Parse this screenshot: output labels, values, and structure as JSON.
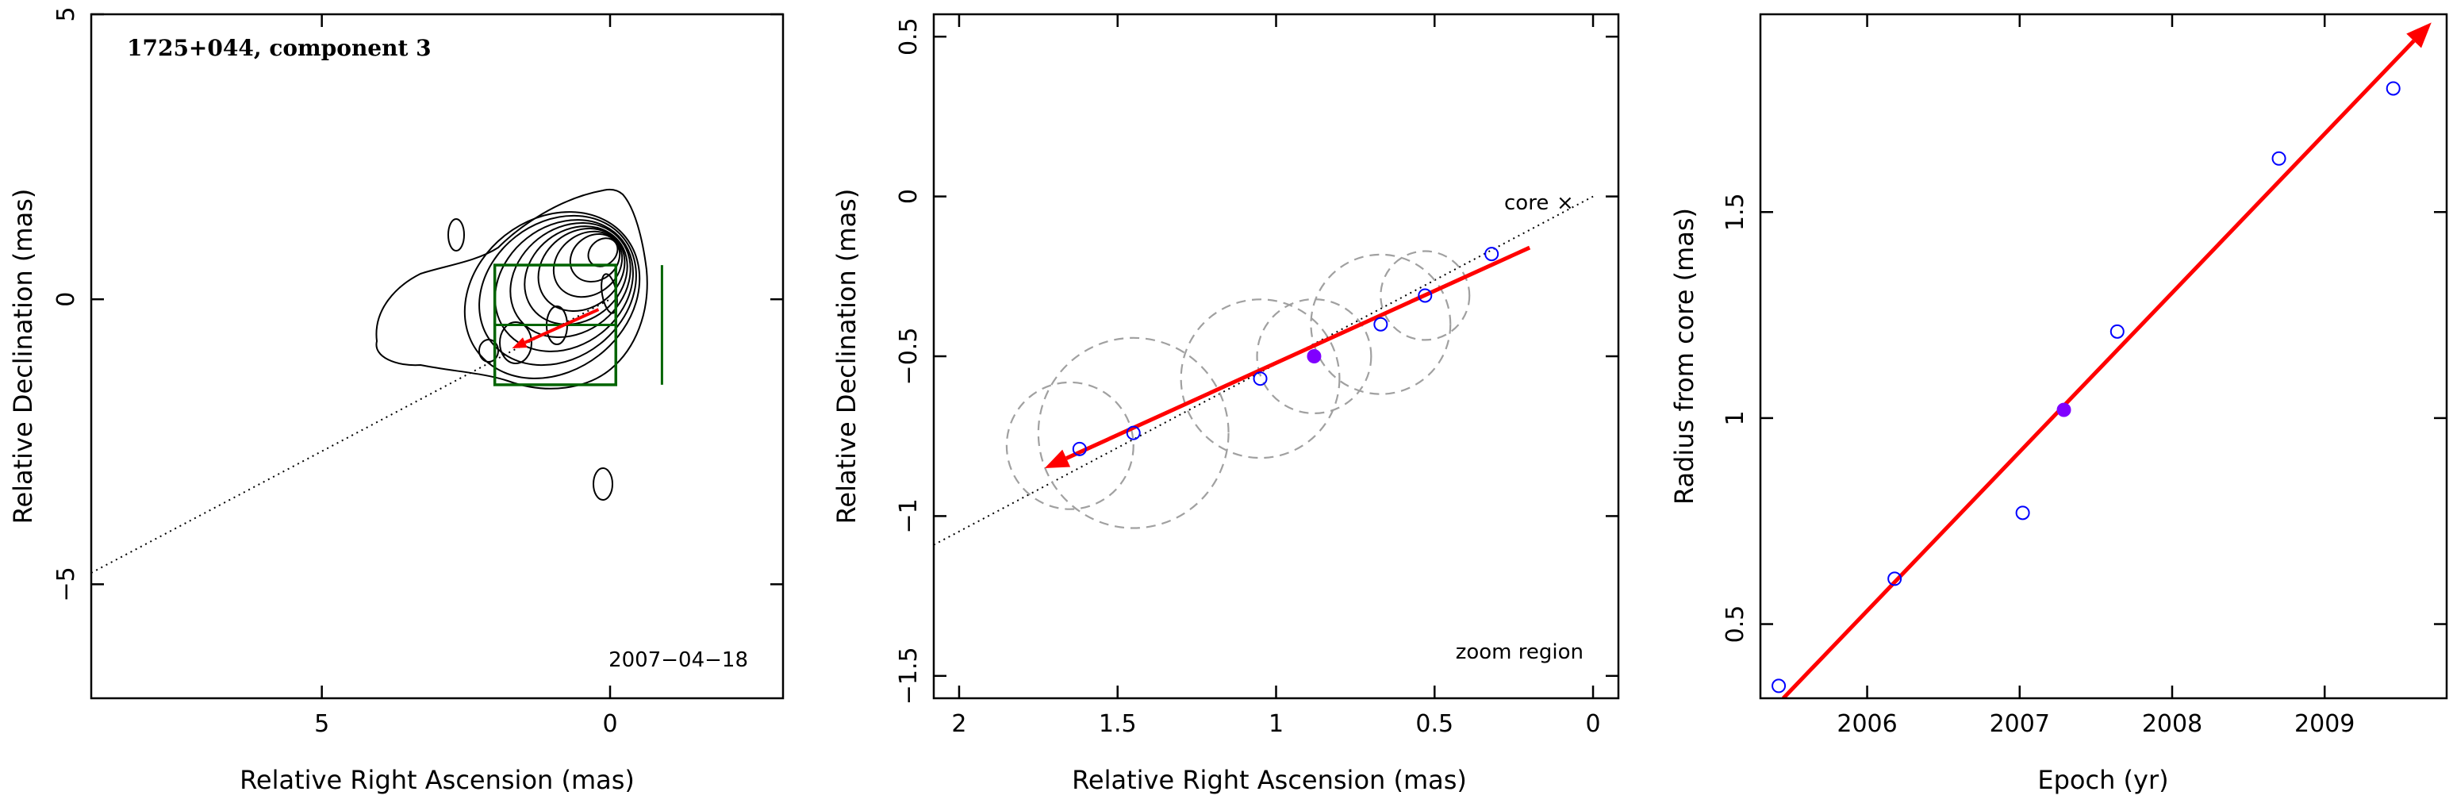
{
  "chart_data": [
    {
      "type": "contour",
      "title": "1725+044, component 3",
      "xlabel": "Relative Right Ascension (mas)",
      "ylabel": "Relative Declination (mas)",
      "xlim": [
        9.0,
        -3.0
      ],
      "ylim": [
        -7.0,
        5.0
      ],
      "xticks": [
        "5",
        "0"
      ],
      "yticks": [
        "5",
        "0",
        "−5"
      ],
      "date_label": "2007−04−18",
      "zoom_box": {
        "ra": [
          2.0,
          -0.1
        ],
        "dec": [
          -1.5,
          0.6
        ]
      },
      "zoom_box_divisions": {
        "ra": -0.9,
        "dec": -0.45
      },
      "jet_line": {
        "from": [
          9.0,
          -4.8
        ],
        "to": [
          0.0,
          0.0
        ]
      },
      "arrow": {
        "from": [
          0.2,
          -0.18
        ],
        "to": [
          1.7,
          -0.86
        ]
      },
      "contour_core": {
        "ra": 0.0,
        "dec": 0.0
      },
      "colors": {
        "arrow": "#ff0000",
        "zoom_box": "#006400",
        "contour": "#000000"
      }
    },
    {
      "type": "scatter",
      "xlabel": "Relative Right Ascension (mas)",
      "ylabel": "Relative Declination (mas)",
      "xlim": [
        2.08,
        -0.08
      ],
      "ylim": [
        -1.57,
        0.57
      ],
      "xticks": [
        "2",
        "1.5",
        "1",
        "0.5",
        "0"
      ],
      "yticks": [
        "0.5",
        "0",
        "−0.5",
        "−1",
        "−1.5"
      ],
      "core_label": "core",
      "region_label": "zoom region",
      "points": [
        {
          "ra": 1.62,
          "dec": -0.79
        },
        {
          "ra": 1.45,
          "dec": -0.74
        },
        {
          "ra": 1.05,
          "dec": -0.57
        },
        {
          "ra": 0.88,
          "dec": -0.5,
          "filled": true
        },
        {
          "ra": 0.67,
          "dec": -0.4
        },
        {
          "ra": 0.53,
          "dec": -0.31
        },
        {
          "ra": 0.32,
          "dec": -0.18
        }
      ],
      "position_circles": [
        {
          "ra": 1.65,
          "dec": -0.78,
          "r": 0.2
        },
        {
          "ra": 1.45,
          "dec": -0.74,
          "r": 0.3
        },
        {
          "ra": 1.05,
          "dec": -0.57,
          "r": 0.25
        },
        {
          "ra": 0.88,
          "dec": -0.5,
          "r": 0.18
        },
        {
          "ra": 0.67,
          "dec": -0.4,
          "r": 0.22
        },
        {
          "ra": 0.53,
          "dec": -0.31,
          "r": 0.14
        }
      ],
      "jet_line": {
        "from": [
          2.08,
          -1.09
        ],
        "to": [
          0.0,
          0.0
        ]
      },
      "arrow": {
        "from": [
          0.2,
          -0.16
        ],
        "to": [
          1.73,
          -0.85
        ]
      },
      "colors": {
        "points": "#0000ff",
        "filled_point": "#8000ff",
        "arrow": "#ff0000",
        "circles": "#a0a0a0"
      }
    },
    {
      "type": "scatter",
      "xlabel": "Epoch (yr)",
      "ylabel": "Radius from core (mas)",
      "xlim": [
        2005.3,
        2009.8
      ],
      "ylim": [
        0.32,
        1.98
      ],
      "xticks": [
        "2006",
        "2007",
        "2008",
        "2009"
      ],
      "yticks": [
        "0.5",
        "1",
        "1.5"
      ],
      "points": [
        {
          "x": 2005.42,
          "y": 0.35
        },
        {
          "x": 2006.18,
          "y": 0.61
        },
        {
          "x": 2007.02,
          "y": 0.77
        },
        {
          "x": 2007.29,
          "y": 1.02,
          "filled": true
        },
        {
          "x": 2007.64,
          "y": 1.21
        },
        {
          "x": 2008.7,
          "y": 1.63
        },
        {
          "x": 2009.45,
          "y": 1.8
        }
      ],
      "fit_line": {
        "from": [
          2005.45,
          0.32
        ],
        "to": [
          2009.7,
          1.96
        ]
      },
      "colors": {
        "points": "#0000ff",
        "filled_point": "#8000ff",
        "arrow": "#ff0000"
      }
    }
  ]
}
